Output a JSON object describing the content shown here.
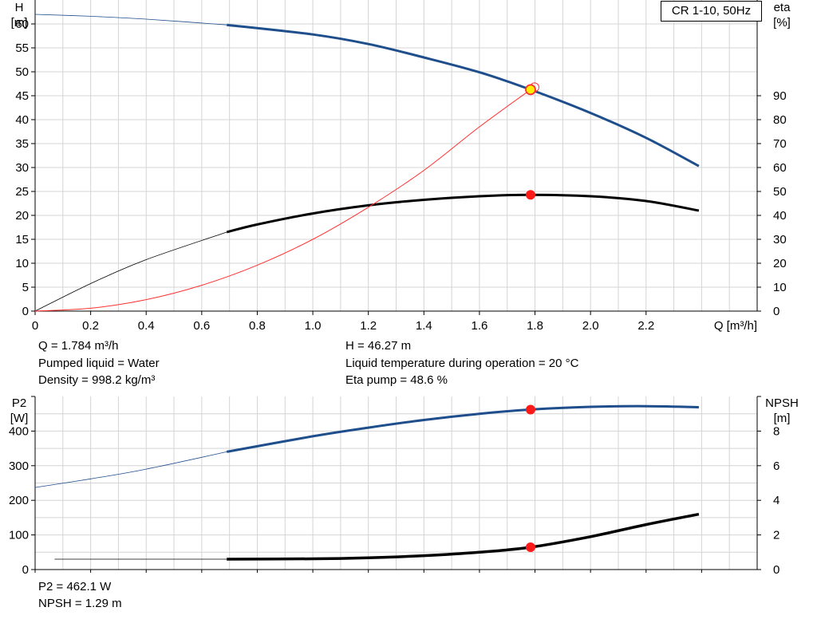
{
  "legend": {
    "label": "CR 1-10, 50Hz"
  },
  "top_info": {
    "q": "Q = 1.784 m³/h",
    "liquid": "Pumped liquid = Water",
    "density": "Density = 998.2 kg/m³",
    "h": "H = 46.27 m",
    "temp": "Liquid temperature during operation = 20 °C",
    "eta": "Eta pump = 48.6 %"
  },
  "bottom_info": {
    "p2": "P2 = 462.1 W",
    "npsh": "NPSH = 1.29 m"
  },
  "chart_data": [
    {
      "type": "line",
      "xlabel": "Q [m³/h]",
      "ylabel_left": [
        "H",
        "[m]"
      ],
      "ylabel_right": [
        "eta",
        "[%]"
      ],
      "xlim": [
        0,
        2.6
      ],
      "ylim_left": [
        0,
        65
      ],
      "ylim_right": [
        0,
        130
      ],
      "x_ticks": [
        0,
        0.2,
        0.4,
        0.6,
        0.8,
        1.0,
        1.2,
        1.4,
        1.6,
        1.8,
        2.0,
        2.2
      ],
      "x_tick_labels": [
        "0",
        "0.2",
        "0.4",
        "0.6",
        "0.8",
        "1.0",
        "1.2",
        "1.4",
        "1.6",
        "1.8",
        "2.0",
        "2.2"
      ],
      "y_ticks_left": [
        0,
        5,
        10,
        15,
        20,
        25,
        30,
        35,
        40,
        45,
        50,
        55,
        60
      ],
      "y_ticks_right": [
        0,
        10,
        20,
        30,
        40,
        50,
        60,
        70,
        80,
        90
      ],
      "grid": true,
      "series": [
        {
          "id": "head",
          "axis": "left",
          "color": "#1f4e8c",
          "thin_until": 0.69,
          "x": [
            0,
            0.2,
            0.4,
            0.69,
            1.0,
            1.2,
            1.4,
            1.6,
            1.784,
            2.0,
            2.2,
            2.39
          ],
          "y": [
            62.0,
            61.6,
            61.0,
            59.8,
            57.8,
            55.8,
            53.0,
            49.9,
            46.27,
            41.4,
            36.2,
            30.3
          ]
        },
        {
          "id": "eta",
          "axis": "right",
          "color": "#000000",
          "thin_until": 0.69,
          "x": [
            0,
            0.2,
            0.4,
            0.69,
            0.8,
            1.0,
            1.2,
            1.4,
            1.6,
            1.784,
            2.0,
            2.2,
            2.39
          ],
          "y": [
            0,
            11.5,
            21.5,
            33.0,
            36.2,
            40.8,
            44.2,
            46.5,
            48.0,
            48.6,
            48.0,
            46.0,
            42.0
          ]
        },
        {
          "id": "system",
          "axis": "left",
          "color": "#ff3030",
          "thin_until": 2.6,
          "x": [
            0,
            0.2,
            0.4,
            0.6,
            0.8,
            1.0,
            1.2,
            1.4,
            1.6,
            1.784
          ],
          "y": [
            0,
            0.6,
            2.4,
            5.4,
            9.6,
            15.0,
            21.7,
            29.4,
            38.5,
            46.27
          ]
        }
      ],
      "points": [
        {
          "series": "head",
          "x": 1.784,
          "y": 46.27,
          "style": "yellow"
        },
        {
          "series": "eta",
          "x": 1.784,
          "y": 48.6,
          "style": "red"
        }
      ]
    },
    {
      "type": "line",
      "ylabel_left": [
        "P2",
        "[W]"
      ],
      "ylabel_right": [
        "NPSH",
        "[m]"
      ],
      "xlim": [
        0,
        2.6
      ],
      "ylim_left": [
        0,
        500
      ],
      "ylim_right": [
        0,
        10
      ],
      "y_ticks_left": [
        0,
        100,
        200,
        300,
        400
      ],
      "y_ticks_right": [
        0,
        2,
        4,
        6,
        8
      ],
      "grid": true,
      "series": [
        {
          "id": "p2",
          "axis": "left",
          "color": "#1f4e8c",
          "thin_until": 0.69,
          "x": [
            0,
            0.2,
            0.4,
            0.69,
            1.0,
            1.2,
            1.4,
            1.6,
            1.784,
            2.0,
            2.2,
            2.39
          ],
          "y": [
            237,
            262,
            290,
            340,
            385,
            410,
            432,
            450,
            462.1,
            470,
            472,
            469
          ]
        },
        {
          "id": "npsh",
          "axis": "right",
          "color": "#000000",
          "thin_until": 0.69,
          "x": [
            0.07,
            0.4,
            0.69,
            1.0,
            1.2,
            1.4,
            1.6,
            1.784,
            2.0,
            2.2,
            2.39
          ],
          "y": [
            0.6,
            0.6,
            0.6,
            0.62,
            0.68,
            0.8,
            1.0,
            1.29,
            1.9,
            2.6,
            3.2
          ]
        }
      ],
      "points": [
        {
          "series": "p2",
          "x": 1.784,
          "y": 462.1,
          "style": "red"
        },
        {
          "series": "npsh",
          "x": 1.784,
          "y": 1.29,
          "style": "red"
        }
      ]
    }
  ]
}
